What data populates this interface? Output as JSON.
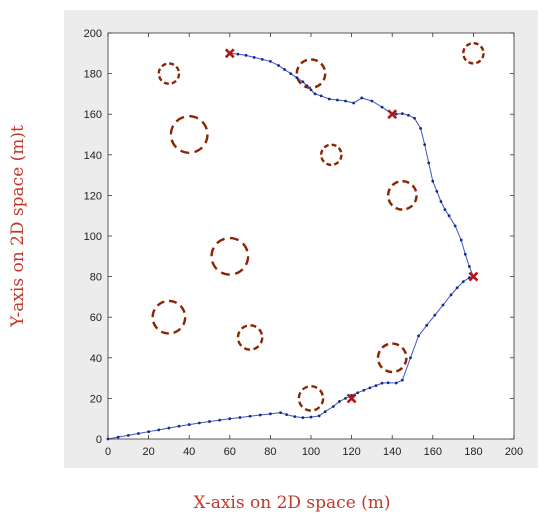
{
  "chart_data": {
    "type": "scatter",
    "xlabel": "X-axis on 2D space (m)",
    "ylabel": "Y-axis on 2D space (m)t",
    "xlim": [
      0,
      200
    ],
    "ylim": [
      0,
      200
    ],
    "xticks": [
      0,
      20,
      40,
      60,
      80,
      100,
      120,
      140,
      160,
      180,
      200
    ],
    "yticks": [
      0,
      20,
      40,
      60,
      80,
      100,
      120,
      140,
      160,
      180,
      200
    ],
    "grid": false,
    "colors": {
      "path": "#3a55c8",
      "path_point": "#1a2a80",
      "obstacle": "#8b2500",
      "waypoint": "#b01818"
    },
    "obstacles": [
      {
        "x": 30,
        "y": 180,
        "r": 5
      },
      {
        "x": 100,
        "y": 180,
        "r": 7
      },
      {
        "x": 180,
        "y": 190,
        "r": 5
      },
      {
        "x": 40,
        "y": 150,
        "r": 9
      },
      {
        "x": 110,
        "y": 140,
        "r": 5
      },
      {
        "x": 145,
        "y": 120,
        "r": 7
      },
      {
        "x": 60,
        "y": 90,
        "r": 9
      },
      {
        "x": 30,
        "y": 60,
        "r": 8
      },
      {
        "x": 70,
        "y": 50,
        "r": 6
      },
      {
        "x": 140,
        "y": 40,
        "r": 7
      },
      {
        "x": 100,
        "y": 20,
        "r": 6
      }
    ],
    "waypoints": [
      {
        "x": 60,
        "y": 190
      },
      {
        "x": 140,
        "y": 160
      },
      {
        "x": 180,
        "y": 80
      },
      {
        "x": 120,
        "y": 20
      }
    ],
    "path": {
      "x": [
        0,
        5,
        10,
        15,
        20,
        25,
        30,
        35,
        40,
        45,
        50,
        55,
        60,
        65,
        70,
        75,
        80,
        85,
        88,
        92,
        96,
        100,
        104,
        107,
        111,
        114,
        117,
        120,
        123,
        126,
        129,
        132,
        135,
        138,
        142,
        145,
        149,
        153,
        157,
        161,
        165,
        169,
        172,
        175,
        178,
        180,
        178,
        176,
        174,
        171,
        168,
        166,
        164,
        162,
        160,
        158,
        156,
        154,
        151,
        148,
        145,
        142,
        140,
        135,
        130,
        125,
        121,
        117,
        113,
        109,
        105,
        102,
        100,
        98,
        96,
        93,
        90,
        87,
        84,
        80,
        76,
        72,
        68,
        64,
        60
      ],
      "y": [
        0,
        0.9,
        1.8,
        2.7,
        3.6,
        4.5,
        5.4,
        6.3,
        7.1,
        7.9,
        8.6,
        9.3,
        10.0,
        10.6,
        11.2,
        11.8,
        12.4,
        13.0,
        12.0,
        11.0,
        10.5,
        10.8,
        11.4,
        13.5,
        16.0,
        18.5,
        20.0,
        21.5,
        22.8,
        24.0,
        25.2,
        26.3,
        27.5,
        27.7,
        27.6,
        29.0,
        40,
        50.8,
        56.0,
        61.0,
        66.0,
        71.0,
        74.5,
        77.5,
        79.5,
        80,
        85,
        91,
        98,
        105,
        110,
        113,
        117,
        122,
        127,
        136,
        145,
        153,
        158,
        159.5,
        160.3,
        160.1,
        160,
        163.5,
        166.5,
        168,
        165.5,
        166.5,
        167,
        167.5,
        169,
        170,
        172,
        174,
        176,
        178,
        180,
        182,
        184,
        186,
        187,
        188,
        189,
        189.6,
        190
      ]
    }
  }
}
